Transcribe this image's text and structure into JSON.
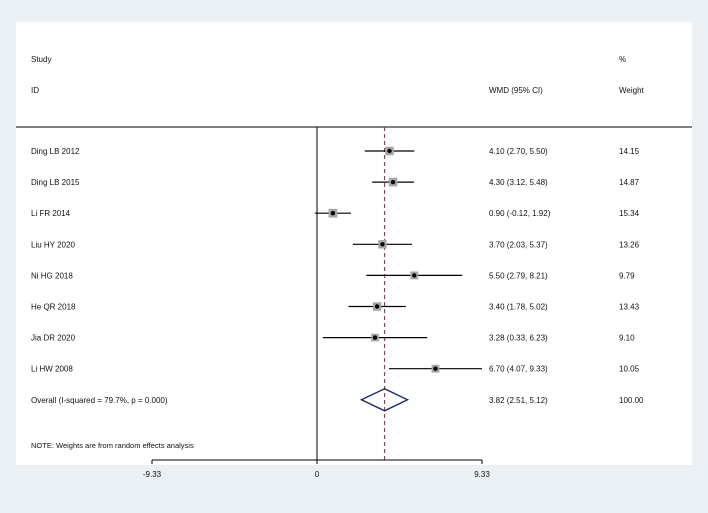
{
  "chart_data": {
    "type": "forest",
    "header": {
      "study_line1": "Study",
      "study_line2": "ID",
      "effect_label": "WMD (95% CI)",
      "weight_line1": "%",
      "weight_line2": "Weight"
    },
    "studies": [
      {
        "label": "Ding LB 2012",
        "est": 4.1,
        "lo": 2.7,
        "hi": 5.5,
        "ci_text": "4.10 (2.70, 5.50)",
        "weight_text": "14.15",
        "weight": 14.15
      },
      {
        "label": "Ding LB 2015",
        "est": 4.3,
        "lo": 3.12,
        "hi": 5.48,
        "ci_text": "4.30 (3.12, 5.48)",
        "weight_text": "14.87",
        "weight": 14.87
      },
      {
        "label": "Li FR 2014",
        "est": 0.9,
        "lo": -0.12,
        "hi": 1.92,
        "ci_text": "0.90 (-0.12, 1.92)",
        "weight_text": "15.34",
        "weight": 15.34
      },
      {
        "label": "Liu HY 2020",
        "est": 3.7,
        "lo": 2.03,
        "hi": 5.37,
        "ci_text": "3.70 (2.03, 5.37)",
        "weight_text": "13.26",
        "weight": 13.26
      },
      {
        "label": "Ni HG 2018",
        "est": 5.5,
        "lo": 2.79,
        "hi": 8.21,
        "ci_text": "5.50 (2.79, 8.21)",
        "weight_text": "9.79",
        "weight": 9.79
      },
      {
        "label": "He QR 2018",
        "est": 3.4,
        "lo": 1.78,
        "hi": 5.02,
        "ci_text": "3.40 (1.78, 5.02)",
        "weight_text": "13.43",
        "weight": 13.43
      },
      {
        "label": "Jia DR 2020",
        "est": 3.28,
        "lo": 0.33,
        "hi": 6.23,
        "ci_text": "3.28 (0.33, 6.23)",
        "weight_text": "9.10",
        "weight": 9.1
      },
      {
        "label": "Li HW 2008",
        "est": 6.7,
        "lo": 4.07,
        "hi": 9.33,
        "ci_text": "6.70 (4.07, 9.33)",
        "weight_text": "10.05",
        "weight": 10.05
      }
    ],
    "overall": {
      "label": "Overall  (I-squared = 79.7%, p = 0.000)",
      "est": 3.82,
      "lo": 2.51,
      "hi": 5.12,
      "ci_text": "3.82 (2.51, 5.12)",
      "weight_text": "100.00"
    },
    "note": "NOTE: Weights are from random effects analysis",
    "x_ticks": [
      {
        "value": -9.33,
        "label": "-9.33"
      },
      {
        "value": 0,
        "label": "0"
      },
      {
        "value": 9.33,
        "label": "9.33"
      }
    ],
    "xlim": [
      -9.33,
      9.33
    ],
    "null_line": 0,
    "colors": {
      "background": "#eaf0f3",
      "panel": "#ffffff",
      "ci_line": "#000000",
      "weight_box": "#a6a6a6",
      "overall_line": "#a03a52",
      "diamond": "#1f2a6e"
    }
  }
}
